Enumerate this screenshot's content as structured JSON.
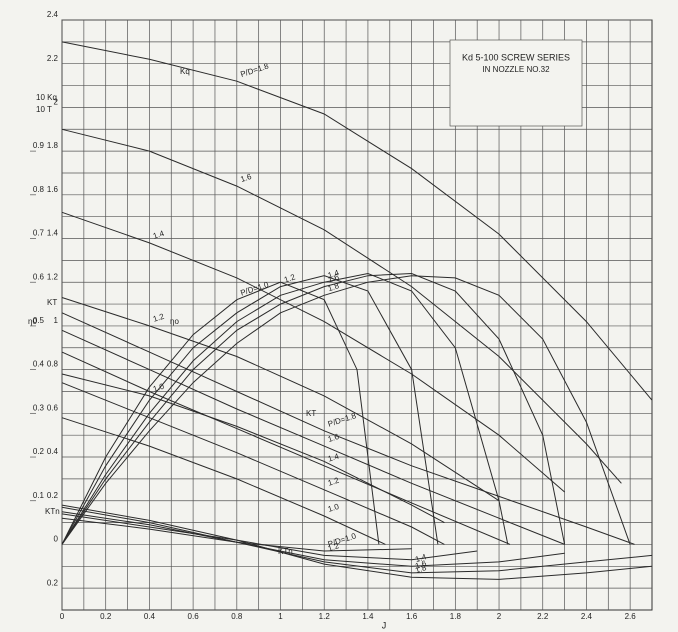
{
  "chart_data": {
    "type": "line",
    "title": "Kd 5-100 SCREW SERIES",
    "subtitle": "IN NOZZLE NO.32",
    "x_label": "J",
    "axis_labels": [
      "10 Kq",
      "10 T",
      "η0",
      "KT",
      "KTn"
    ],
    "group_labels": [
      "Kq",
      "ηo",
      "KT",
      "KTn"
    ],
    "xlim": [
      0,
      2.7
    ],
    "xticks": [
      0,
      0.2,
      0.4,
      0.6,
      0.8,
      1.0,
      1.2,
      1.4,
      1.6,
      1.8,
      2.0,
      2.2,
      2.4,
      2.6
    ],
    "ylim": [
      -0.3,
      2.4
    ],
    "yticks": [
      {
        "value": -0.2,
        "label": "0.2"
      },
      0,
      0.2,
      0.4,
      0.6,
      0.8,
      1.0,
      1.2,
      1.4,
      1.6,
      1.8,
      2.0,
      2.2,
      2.4
    ],
    "y2lim": [
      -0.15,
      1.2
    ],
    "y2ticks": [
      0.1,
      0.2,
      0.3,
      0.4,
      0.5,
      0.6,
      0.7,
      0.8,
      0.9
    ],
    "grid": true,
    "minor_grid": true,
    "color": "#2b2b2b",
    "series": [
      {
        "name": "P/D=1.8",
        "x": [
          0,
          0.4,
          0.8,
          1.2,
          1.6,
          2.0,
          2.4,
          2.7
        ],
        "values": [
          2.3,
          2.22,
          2.12,
          1.97,
          1.72,
          1.42,
          1.02,
          0.66
        ]
      },
      {
        "name": "1.6",
        "x": [
          0,
          0.4,
          0.8,
          1.2,
          1.6,
          2.0,
          2.4,
          2.56
        ],
        "values": [
          1.9,
          1.8,
          1.64,
          1.44,
          1.18,
          0.86,
          0.46,
          0.28
        ]
      },
      {
        "name": "1.4",
        "x": [
          0,
          0.4,
          0.8,
          1.2,
          1.6,
          2.0,
          2.3
        ],
        "values": [
          1.52,
          1.38,
          1.22,
          1.02,
          0.78,
          0.5,
          0.24
        ]
      },
      {
        "name": "1.2",
        "x": [
          0,
          0.4,
          0.8,
          1.2,
          1.6,
          2.0
        ],
        "values": [
          1.13,
          1.0,
          0.86,
          0.68,
          0.46,
          0.2
        ]
      },
      {
        "name": "1.0",
        "x": [
          0,
          0.4,
          0.8,
          1.2,
          1.6,
          1.75
        ],
        "values": [
          0.78,
          0.68,
          0.54,
          0.38,
          0.18,
          0.1
        ]
      },
      {
        "name": "P/D=1.0",
        "axis": "y2",
        "x": [
          0,
          0.2,
          0.4,
          0.6,
          0.8,
          1.0,
          1.2,
          1.35,
          1.45
        ],
        "values": [
          0,
          0.2,
          0.36,
          0.48,
          0.56,
          0.6,
          0.56,
          0.4,
          0
        ]
      },
      {
        "name": "1.2",
        "axis": "y2",
        "x": [
          0,
          0.2,
          0.4,
          0.6,
          0.8,
          1.0,
          1.2,
          1.4,
          1.6,
          1.72
        ],
        "values": [
          0,
          0.18,
          0.33,
          0.45,
          0.53,
          0.59,
          0.615,
          0.58,
          0.4,
          0
        ]
      },
      {
        "name": "1.4",
        "axis": "y2",
        "x": [
          0,
          0.2,
          0.4,
          0.6,
          0.8,
          1.0,
          1.2,
          1.4,
          1.6,
          1.8,
          2.0,
          2.04
        ],
        "values": [
          0,
          0.16,
          0.3,
          0.42,
          0.51,
          0.57,
          0.6,
          0.62,
          0.58,
          0.45,
          0.1,
          0
        ]
      },
      {
        "name": "1.6",
        "axis": "y2",
        "x": [
          0,
          0.2,
          0.4,
          0.6,
          0.8,
          1.0,
          1.2,
          1.4,
          1.6,
          1.8,
          2.0,
          2.2,
          2.3
        ],
        "values": [
          0,
          0.15,
          0.28,
          0.4,
          0.49,
          0.55,
          0.59,
          0.615,
          0.62,
          0.58,
          0.47,
          0.25,
          0
        ]
      },
      {
        "name": "1.8",
        "axis": "y2",
        "x": [
          0,
          0.2,
          0.4,
          0.6,
          0.8,
          1.0,
          1.2,
          1.4,
          1.6,
          1.8,
          2.0,
          2.2,
          2.4,
          2.6
        ],
        "values": [
          0,
          0.14,
          0.26,
          0.37,
          0.46,
          0.53,
          0.57,
          0.6,
          0.615,
          0.61,
          0.57,
          0.47,
          0.28,
          0
        ]
      },
      {
        "name": "P/D=1.8",
        "x": [
          0,
          0.4,
          0.8,
          1.2,
          1.6,
          2.0,
          2.4,
          2.62
        ],
        "values": [
          1.06,
          0.88,
          0.7,
          0.52,
          0.36,
          0.22,
          0.08,
          0
        ]
      },
      {
        "name": "1.6",
        "x": [
          0,
          0.4,
          0.8,
          1.2,
          1.6,
          2.0,
          2.3
        ],
        "values": [
          0.98,
          0.8,
          0.62,
          0.45,
          0.28,
          0.12,
          0
        ]
      },
      {
        "name": "1.4",
        "x": [
          0,
          0.4,
          0.8,
          1.2,
          1.6,
          2.05
        ],
        "values": [
          0.88,
          0.7,
          0.53,
          0.36,
          0.19,
          0
        ]
      },
      {
        "name": "1.2",
        "x": [
          0,
          0.4,
          0.8,
          1.2,
          1.6,
          1.75
        ],
        "values": [
          0.74,
          0.58,
          0.42,
          0.25,
          0.08,
          0
        ]
      },
      {
        "name": "1.0",
        "x": [
          0,
          0.4,
          0.8,
          1.2,
          1.48
        ],
        "values": [
          0.58,
          0.45,
          0.3,
          0.13,
          0
        ]
      },
      {
        "name": "P/D=1.0",
        "x": [
          0,
          0.4,
          0.8,
          1.2,
          1.6
        ],
        "values": [
          0.12,
          0.07,
          0.01,
          -0.03,
          -0.02
        ]
      },
      {
        "name": "1.2",
        "x": [
          0,
          0.4,
          0.8,
          1.2,
          1.6,
          1.9
        ],
        "values": [
          0.14,
          0.08,
          0.02,
          -0.05,
          -0.07,
          -0.03
        ]
      },
      {
        "name": "1.4",
        "x": [
          0,
          0.4,
          0.8,
          1.2,
          1.6,
          2.0,
          2.3
        ],
        "values": [
          0.15,
          0.09,
          0.01,
          -0.07,
          -0.1,
          -0.08,
          -0.04
        ]
      },
      {
        "name": "1.6",
        "x": [
          0,
          0.4,
          0.8,
          1.2,
          1.6,
          2.0,
          2.4,
          2.7
        ],
        "values": [
          0.17,
          0.1,
          0.01,
          -0.08,
          -0.13,
          -0.12,
          -0.08,
          -0.05
        ]
      },
      {
        "name": "1.8",
        "x": [
          0,
          0.4,
          0.8,
          1.2,
          1.6,
          2.0,
          2.4,
          2.7
        ],
        "values": [
          0.18,
          0.11,
          0.02,
          -0.09,
          -0.15,
          -0.16,
          -0.13,
          -0.1
        ]
      }
    ]
  }
}
